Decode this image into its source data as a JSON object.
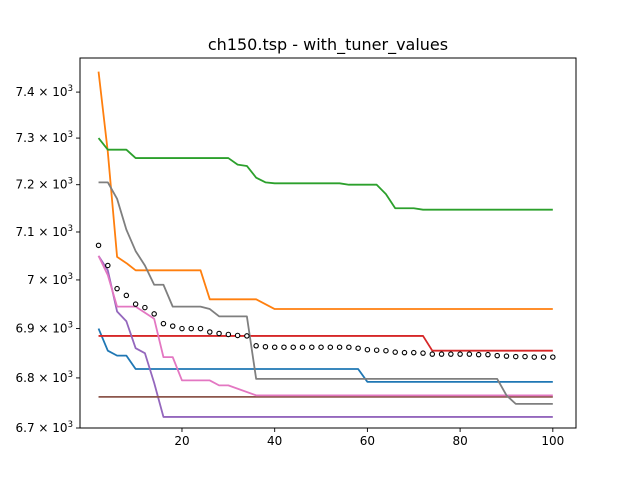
{
  "chart_data": {
    "type": "line",
    "title": "ch150.tsp - with_tuner_values",
    "xlabel": "",
    "ylabel": "",
    "xlim": [
      -2,
      105
    ],
    "ylim": [
      6700,
      7475
    ],
    "yscale": "log",
    "grid": false,
    "x_ticks": [
      {
        "value": 20,
        "label": "20"
      },
      {
        "value": 40,
        "label": "40"
      },
      {
        "value": 60,
        "label": "60"
      },
      {
        "value": 80,
        "label": "80"
      },
      {
        "value": 100,
        "label": "100"
      }
    ],
    "y_ticks": [
      {
        "value": 6700,
        "mantissa": "6.7",
        "exp": "3"
      },
      {
        "value": 6800,
        "mantissa": "6.8",
        "exp": "3"
      },
      {
        "value": 6900,
        "mantissa": "6.9",
        "exp": "3"
      },
      {
        "value": 7000,
        "mantissa": "7",
        "exp": "3"
      },
      {
        "value": 7100,
        "mantissa": "7.1",
        "exp": "3"
      },
      {
        "value": 7200,
        "mantissa": "7.2",
        "exp": "3"
      },
      {
        "value": 7300,
        "mantissa": "7.3",
        "exp": "3"
      },
      {
        "value": 7400,
        "mantissa": "7.4",
        "exp": "3"
      }
    ],
    "series": [
      {
        "color": "#1f77b4",
        "style": "line",
        "points": [
          [
            2,
            6900
          ],
          [
            4,
            6855
          ],
          [
            6,
            6845
          ],
          [
            8,
            6845
          ],
          [
            10,
            6818
          ],
          [
            56,
            6818
          ],
          [
            58,
            6818
          ],
          [
            60,
            6792
          ],
          [
            100,
            6792
          ]
        ]
      },
      {
        "color": "#ff7f0e",
        "style": "line",
        "points": [
          [
            2,
            7445
          ],
          [
            4,
            7270
          ],
          [
            6,
            7048
          ],
          [
            8,
            7035
          ],
          [
            10,
            7020
          ],
          [
            24,
            7020
          ],
          [
            26,
            6960
          ],
          [
            36,
            6960
          ],
          [
            38,
            6950
          ],
          [
            40,
            6940
          ],
          [
            100,
            6940
          ]
        ]
      },
      {
        "color": "#2ca02c",
        "style": "line",
        "points": [
          [
            2,
            7300
          ],
          [
            4,
            7275
          ],
          [
            8,
            7275
          ],
          [
            10,
            7257
          ],
          [
            30,
            7257
          ],
          [
            32,
            7243
          ],
          [
            34,
            7240
          ],
          [
            36,
            7215
          ],
          [
            38,
            7205
          ],
          [
            40,
            7203
          ],
          [
            54,
            7203
          ],
          [
            56,
            7200
          ],
          [
            62,
            7200
          ],
          [
            64,
            7180
          ],
          [
            66,
            7150
          ],
          [
            70,
            7150
          ],
          [
            72,
            7147
          ],
          [
            100,
            7147
          ]
        ]
      },
      {
        "color": "#d62728",
        "style": "line",
        "points": [
          [
            2,
            6885
          ],
          [
            72,
            6885
          ],
          [
            74,
            6855
          ],
          [
            100,
            6855
          ]
        ]
      },
      {
        "color": "#9467bd",
        "style": "line",
        "points": [
          [
            2,
            7050
          ],
          [
            4,
            7020
          ],
          [
            6,
            6935
          ],
          [
            8,
            6915
          ],
          [
            10,
            6860
          ],
          [
            12,
            6850
          ],
          [
            14,
            6790
          ],
          [
            16,
            6722
          ],
          [
            100,
            6722
          ]
        ]
      },
      {
        "color": "#8c564b",
        "style": "line",
        "points": [
          [
            2,
            6762
          ],
          [
            100,
            6762
          ]
        ]
      },
      {
        "color": "#e377c2",
        "style": "line",
        "points": [
          [
            2,
            7050
          ],
          [
            4,
            7010
          ],
          [
            6,
            6945
          ],
          [
            8,
            6945
          ],
          [
            10,
            6945
          ],
          [
            14,
            6920
          ],
          [
            16,
            6842
          ],
          [
            18,
            6842
          ],
          [
            20,
            6795
          ],
          [
            26,
            6795
          ],
          [
            28,
            6785
          ],
          [
            30,
            6785
          ],
          [
            36,
            6765
          ],
          [
            100,
            6765
          ]
        ]
      },
      {
        "color": "#7f7f7f",
        "style": "line",
        "points": [
          [
            2,
            7205
          ],
          [
            4,
            7205
          ],
          [
            6,
            7170
          ],
          [
            8,
            7105
          ],
          [
            10,
            7060
          ],
          [
            12,
            7030
          ],
          [
            14,
            6990
          ],
          [
            16,
            6990
          ],
          [
            18,
            6945
          ],
          [
            24,
            6945
          ],
          [
            26,
            6940
          ],
          [
            28,
            6925
          ],
          [
            34,
            6925
          ],
          [
            36,
            6798
          ],
          [
            88,
            6798
          ],
          [
            90,
            6765
          ],
          [
            92,
            6748
          ],
          [
            100,
            6748
          ]
        ]
      },
      {
        "color": "#000000",
        "style": "dots",
        "points": [
          [
            2,
            7072
          ],
          [
            4,
            7030
          ],
          [
            6,
            6982
          ],
          [
            8,
            6968
          ],
          [
            10,
            6950
          ],
          [
            12,
            6943
          ],
          [
            14,
            6930
          ],
          [
            16,
            6910
          ],
          [
            18,
            6905
          ],
          [
            20,
            6900
          ],
          [
            22,
            6900
          ],
          [
            24,
            6900
          ],
          [
            26,
            6893
          ],
          [
            28,
            6890
          ],
          [
            30,
            6888
          ],
          [
            32,
            6886
          ],
          [
            34,
            6885
          ],
          [
            36,
            6865
          ],
          [
            38,
            6863
          ],
          [
            40,
            6862
          ],
          [
            42,
            6862
          ],
          [
            44,
            6862
          ],
          [
            46,
            6862
          ],
          [
            48,
            6862
          ],
          [
            50,
            6862
          ],
          [
            52,
            6862
          ],
          [
            54,
            6862
          ],
          [
            56,
            6862
          ],
          [
            58,
            6860
          ],
          [
            60,
            6857
          ],
          [
            62,
            6856
          ],
          [
            64,
            6855
          ],
          [
            66,
            6852
          ],
          [
            68,
            6851
          ],
          [
            70,
            6851
          ],
          [
            72,
            6850
          ],
          [
            74,
            6848
          ],
          [
            76,
            6848
          ],
          [
            78,
            6848
          ],
          [
            80,
            6848
          ],
          [
            82,
            6848
          ],
          [
            84,
            6847
          ],
          [
            86,
            6847
          ],
          [
            88,
            6845
          ],
          [
            90,
            6844
          ],
          [
            92,
            6843
          ],
          [
            94,
            6843
          ],
          [
            96,
            6842
          ],
          [
            98,
            6842
          ],
          [
            100,
            6842
          ]
        ]
      }
    ]
  }
}
